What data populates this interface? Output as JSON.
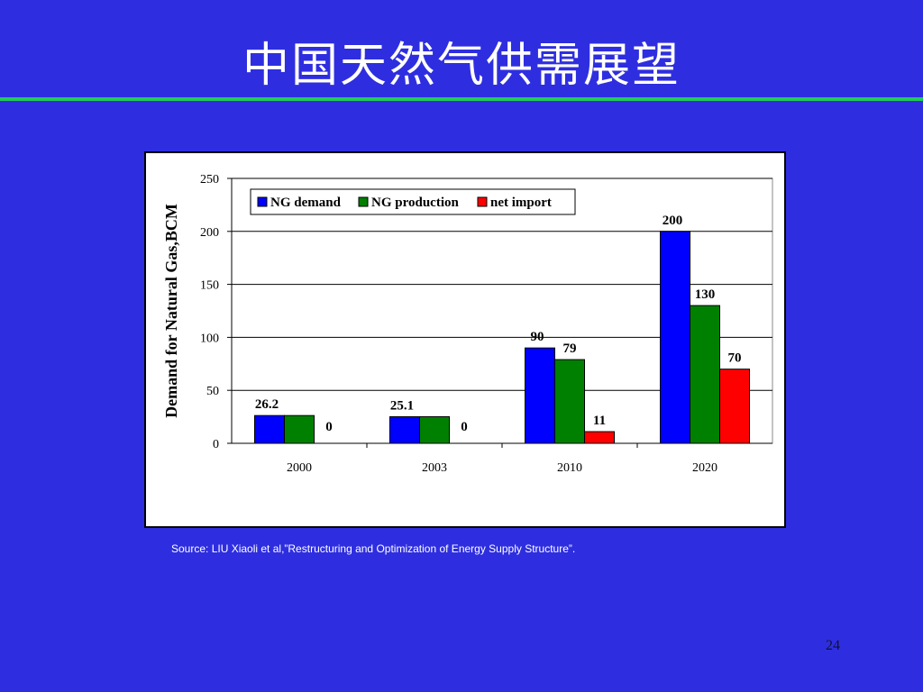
{
  "slide": {
    "title": "中国天然气供需展望",
    "source": "Source: LIU Xiaoli et al,”Restructuring and Optimization of Energy Supply Structure”.",
    "page_number": "24"
  },
  "colors": {
    "background": "#2e2ee0",
    "rule": "#22cc55",
    "ng_demand": "#0000ff",
    "ng_production": "#008000",
    "net_import": "#ff0000"
  },
  "chart_data": {
    "type": "bar",
    "title": "",
    "xlabel": "",
    "ylabel": "Demand for Natural Gas,BCM",
    "categories": [
      "2000",
      "2003",
      "2010",
      "2020"
    ],
    "ylim": [
      0,
      250
    ],
    "yticks": [
      0,
      50,
      100,
      150,
      200,
      250
    ],
    "grid": true,
    "legend_position": "top-left",
    "series": [
      {
        "name": "NG demand",
        "color": "#0000ff",
        "values": [
          26.2,
          25.1,
          90,
          200
        ],
        "labels": [
          "26.2",
          "25.1",
          "90",
          "200"
        ]
      },
      {
        "name": "NG production",
        "color": "#008000",
        "values": [
          26.2,
          25.1,
          79,
          130
        ],
        "labels": [
          "",
          "",
          "79",
          "130"
        ]
      },
      {
        "name": "net import",
        "color": "#ff0000",
        "values": [
          0,
          0,
          11,
          70
        ],
        "labels": [
          "0",
          "0",
          "11",
          "70"
        ]
      }
    ]
  }
}
